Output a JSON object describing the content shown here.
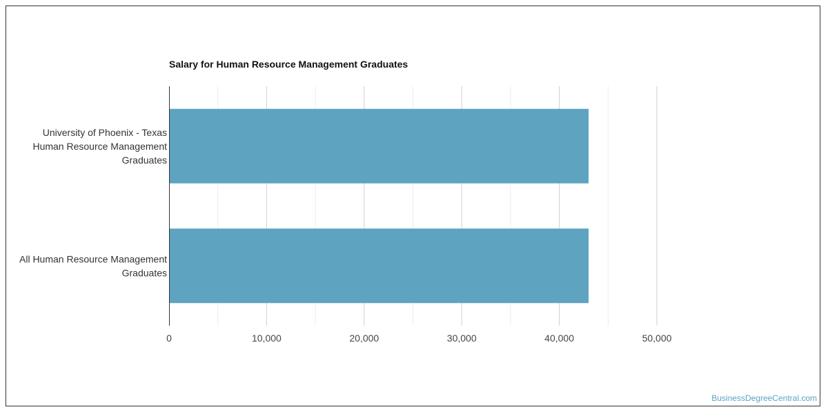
{
  "chart_data": {
    "type": "bar",
    "orientation": "horizontal",
    "title": "Salary for Human Resource Management Graduates",
    "categories": [
      [
        "University of Phoenix - Texas",
        "Human Resource Management",
        "Graduates"
      ],
      [
        "All Human Resource Management",
        "Graduates"
      ]
    ],
    "values": [
      43000,
      43000
    ],
    "xlim": [
      0,
      50000
    ],
    "xticks": [
      "0",
      "10,000",
      "20,000",
      "30,000",
      "40,000",
      "50,000"
    ],
    "grid": true,
    "bar_color": "#5ea3c0"
  },
  "footer": {
    "watermark": "BusinessDegreeCentral.com"
  }
}
